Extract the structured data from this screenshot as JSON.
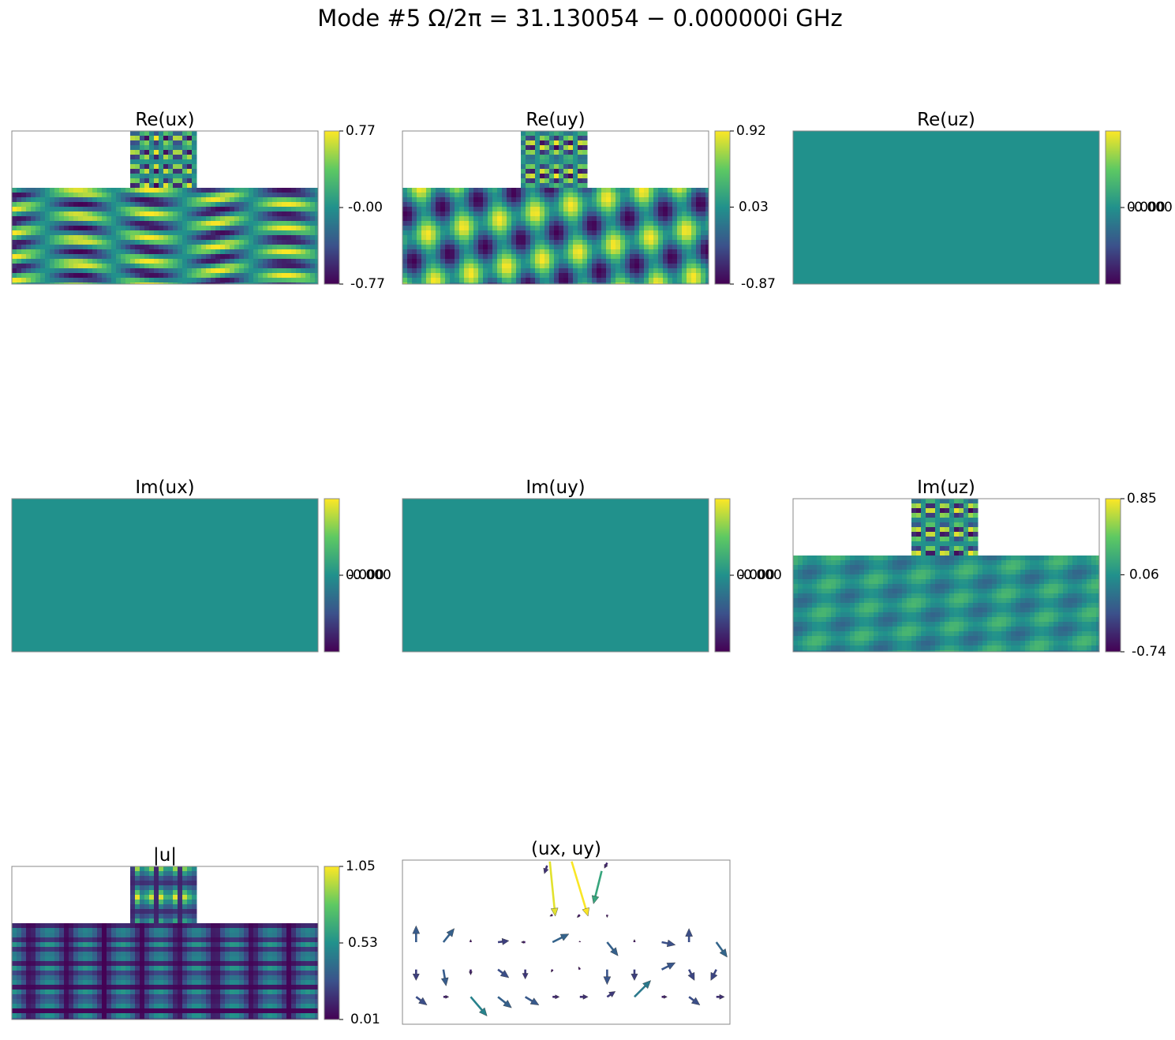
{
  "title": "Mode #5   Ω/2π = 31.130054 − 0.000000i GHz",
  "chart_data": [
    {
      "type": "heatmap",
      "title": "Re(ux)",
      "colormap": "viridis",
      "uniform": false,
      "clim": [
        -0.77,
        0.77
      ],
      "cticks": [
        0.77,
        {
          "value": 0,
          "label": "-0.00"
        },
        -0.77
      ]
    },
    {
      "type": "heatmap",
      "title": "Re(uy)",
      "colormap": "viridis",
      "uniform": false,
      "clim": [
        -0.87,
        0.92
      ],
      "cticks": [
        0.92,
        0.03,
        -0.87
      ]
    },
    {
      "type": "heatmap",
      "title": "Re(uz)",
      "colormap": "viridis",
      "uniform": true,
      "clim": [
        -0.001,
        0.001
      ],
      "cticks": [
        {
          "value": 0,
          "label": "0.000"
        },
        {
          "value": 0,
          "label": "-0.000"
        }
      ]
    },
    {
      "type": "heatmap",
      "title": "Im(ux)",
      "colormap": "viridis",
      "uniform": true,
      "clim": [
        -0.001,
        0.001
      ],
      "cticks": [
        {
          "value": 0,
          "label": "0.000"
        },
        {
          "value": 0,
          "label": "-0.000"
        }
      ]
    },
    {
      "type": "heatmap",
      "title": "Im(uy)",
      "colormap": "viridis",
      "uniform": true,
      "clim": [
        -0.001,
        0.001
      ],
      "cticks": [
        {
          "value": 0,
          "label": "0.000"
        },
        {
          "value": 0,
          "label": "-0.000"
        }
      ]
    },
    {
      "type": "heatmap",
      "title": "Im(uz)",
      "colormap": "viridis",
      "uniform": false,
      "clim": [
        -0.74,
        0.85
      ],
      "cticks": [
        0.85,
        0.06,
        -0.74
      ]
    },
    {
      "type": "heatmap",
      "title": "|u|",
      "colormap": "viridis",
      "uniform": false,
      "clim": [
        0.01,
        1.05
      ],
      "cticks": [
        1.05,
        0.53,
        0.01
      ]
    },
    {
      "type": "quiver",
      "title": "(ux, uy)",
      "colormap": "viridis",
      "xlim": [
        0,
        12
      ],
      "ylim": [
        0,
        6
      ],
      "arrows": {
        "x": [
          0.5,
          1.5,
          2.5,
          3.5,
          4.5,
          5.5,
          6.5,
          7.5,
          8.5,
          9.5,
          10.5,
          11.5,
          0.5,
          1.5,
          2.5,
          3.5,
          4.5,
          5.5,
          6.5,
          7.5,
          8.5,
          9.5,
          10.5,
          11.5,
          0.5,
          1.5,
          2.5,
          3.5,
          4.5,
          5.5,
          6.5,
          7.5,
          8.5,
          9.5,
          10.5,
          11.5,
          5.5,
          6.5,
          7.5,
          5.4,
          6.2,
          7.3,
          5.3,
          7.5
        ],
        "y": [
          3,
          3,
          3,
          3,
          3,
          3,
          3,
          3,
          3,
          3,
          3,
          3,
          2,
          2,
          2,
          2,
          2,
          2,
          2,
          2,
          2,
          2,
          2,
          2,
          1,
          1,
          1,
          1,
          1,
          1,
          1,
          1,
          1,
          1,
          1,
          1,
          4,
          4,
          4,
          5.95,
          5.95,
          5.6,
          5.8,
          5.9
        ],
        "u": [
          0,
          0.4,
          0,
          0.4,
          -0.15,
          0.6,
          0,
          0.4,
          0,
          0.5,
          0,
          0.4,
          0,
          0.1,
          0,
          0.4,
          0,
          -0.05,
          -0.05,
          0,
          0,
          0.5,
          0.2,
          -0.2,
          0.4,
          0.2,
          0.6,
          0.5,
          0.5,
          0.25,
          0.3,
          0.3,
          0.6,
          0.2,
          0.4,
          0.3,
          -0.1,
          -0.1,
          0,
          0.2,
          0.6,
          -0.3,
          -0.1,
          -0.1
        ],
        "v": [
          0.6,
          0.5,
          0.1,
          0.05,
          0,
          0.3,
          0.05,
          -0.5,
          0.1,
          -0.1,
          0.5,
          -0.55,
          -0.4,
          -0.6,
          -0.2,
          -0.3,
          -0.35,
          -0.1,
          0.1,
          -0.55,
          -0.4,
          0.25,
          -0.4,
          -0.4,
          -0.3,
          0,
          -0.7,
          -0.4,
          -0.3,
          0,
          0,
          0.2,
          0.6,
          0,
          -0.3,
          0,
          -0.05,
          -0.1,
          -0.1,
          -2.0,
          -2.0,
          -1.2,
          -0.3,
          -0.2
        ]
      }
    }
  ]
}
